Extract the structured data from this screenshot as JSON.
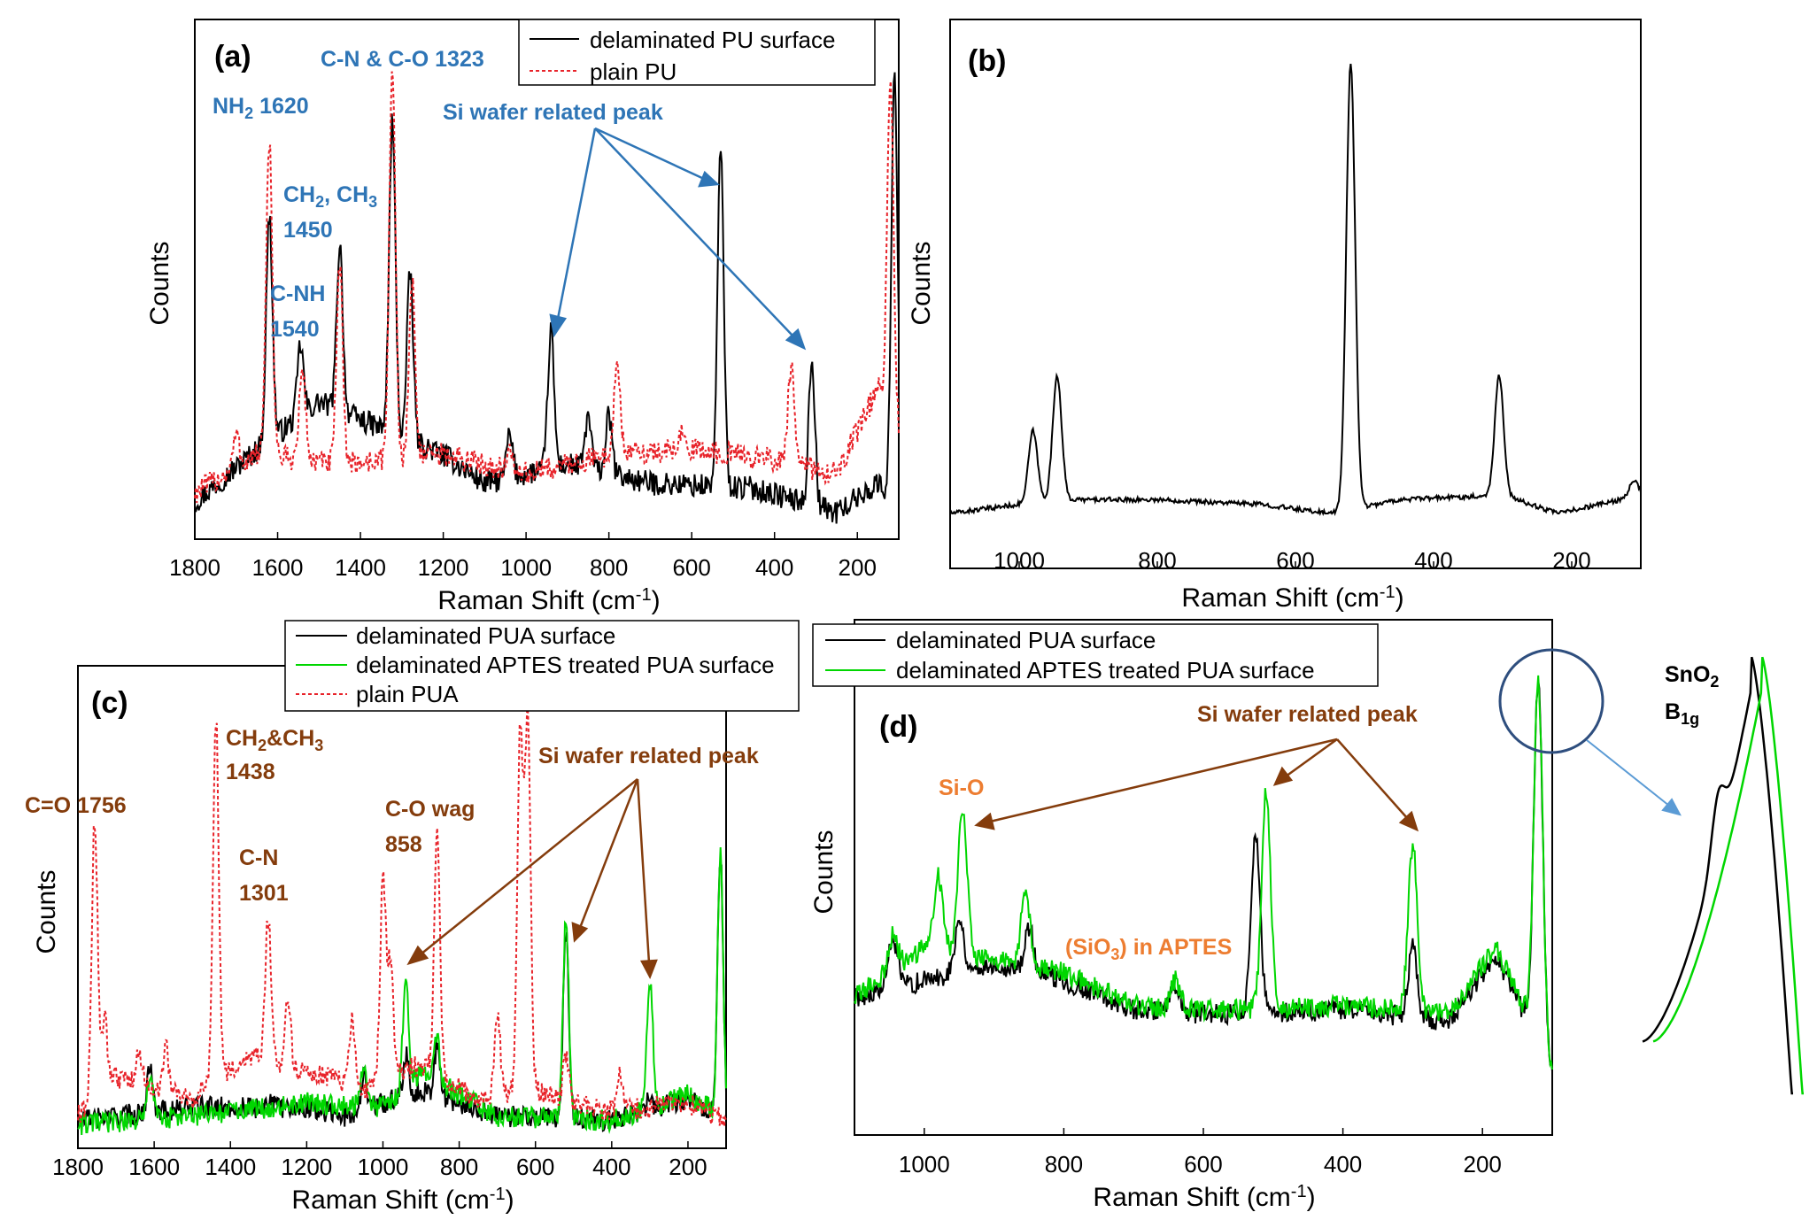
{
  "chart_data": [
    {
      "panel": "(a)",
      "type": "line",
      "xlabel": "Raman Shift (cm",
      "xlabel_sup": "-1",
      "xlabel_end": ")",
      "ylabel": "Counts",
      "x_reversed": true,
      "xlim": [
        1800,
        100
      ],
      "xticks": [
        "1800",
        "1600",
        "1400",
        "1200",
        "1000",
        "800",
        "600",
        "400",
        "200"
      ],
      "xtick_values": [
        1800,
        1600,
        1400,
        1200,
        1000,
        800,
        600,
        400,
        200
      ],
      "series": [
        {
          "name": "delaminated PU surface",
          "color": "#000000",
          "dashed": false,
          "peaks": [
            [
              1620,
              0.66
            ],
            [
              1545,
              0.39
            ],
            [
              1450,
              0.6
            ],
            [
              1323,
              0.86
            ],
            [
              1280,
              0.54
            ],
            [
              1040,
              0.2
            ],
            [
              940,
              0.42
            ],
            [
              850,
              0.24
            ],
            [
              800,
              0.24
            ],
            [
              530,
              0.8
            ],
            [
              310,
              0.36
            ],
            [
              110,
              0.96
            ]
          ],
          "baseline": [
            [
              1800,
              0.06
            ],
            [
              1650,
              0.17
            ],
            [
              1500,
              0.27
            ],
            [
              1200,
              0.16
            ],
            [
              1100,
              0.1
            ],
            [
              900,
              0.14
            ],
            [
              700,
              0.1
            ],
            [
              450,
              0.09
            ],
            [
              250,
              0.04
            ],
            [
              150,
              0.1
            ],
            [
              100,
              0.05
            ]
          ]
        },
        {
          "name": "plain PU",
          "color": "#E8232A",
          "dashed": true,
          "peaks": [
            [
              1700,
              0.2
            ],
            [
              1620,
              0.82
            ],
            [
              1540,
              0.34
            ],
            [
              1450,
              0.55
            ],
            [
              1323,
              0.97
            ],
            [
              1275,
              0.52
            ],
            [
              1040,
              0.16
            ],
            [
              780,
              0.35
            ],
            [
              620,
              0.22
            ],
            [
              360,
              0.34
            ],
            [
              120,
              0.95
            ]
          ],
          "baseline": [
            [
              1800,
              0.08
            ],
            [
              1650,
              0.16
            ],
            [
              1450,
              0.14
            ],
            [
              1200,
              0.16
            ],
            [
              1000,
              0.12
            ],
            [
              800,
              0.16
            ],
            [
              600,
              0.17
            ],
            [
              400,
              0.15
            ],
            [
              250,
              0.12
            ],
            [
              150,
              0.3
            ],
            [
              100,
              0.2
            ]
          ]
        }
      ],
      "annotations": [
        {
          "text": "C-N & C-O 1323"
        },
        {
          "text": "NH",
          "sub": "2",
          "text_after": " 1620"
        },
        {
          "text": "CH",
          "sub": "2",
          "text_after": ", CH",
          "sub2": "3"
        },
        {
          "text": "1450"
        },
        {
          "text": "C-NH"
        },
        {
          "text": "1540"
        },
        {
          "text": "Si wafer related peak"
        }
      ]
    },
    {
      "panel": "(b)",
      "type": "line",
      "xlabel": "Raman Shift (cm",
      "xlabel_sup": "-1",
      "xlabel_end": ")",
      "ylabel": "Counts",
      "x_reversed": true,
      "xlim": [
        1100,
        100
      ],
      "xticks": [
        "1000",
        "800",
        "600",
        "400",
        "200"
      ],
      "xtick_values": [
        1000,
        800,
        600,
        400,
        200
      ],
      "series": [
        {
          "name": "",
          "color": "#000000",
          "dashed": false,
          "peaks": [
            [
              980,
              0.18
            ],
            [
              945,
              0.3
            ],
            [
              520,
              0.98
            ],
            [
              305,
              0.3
            ],
            [
              110,
              0.07
            ]
          ],
          "baseline": [
            [
              1100,
              0.0
            ],
            [
              950,
              0.03
            ],
            [
              800,
              0.03
            ],
            [
              650,
              0.02
            ],
            [
              550,
              0.0
            ],
            [
              450,
              0.03
            ],
            [
              300,
              0.04
            ],
            [
              220,
              0.0
            ],
            [
              100,
              0.04
            ]
          ]
        }
      ]
    },
    {
      "panel": "(c)",
      "type": "line",
      "xlabel": "Raman Shift (cm",
      "xlabel_sup": "-1",
      "xlabel_end": ")",
      "ylabel": "Counts",
      "x_reversed": true,
      "xlim": [
        1800,
        100
      ],
      "xticks": [
        "1800",
        "1600",
        "1400",
        "1200",
        "1000",
        "800",
        "600",
        "400",
        "200"
      ],
      "xtick_values": [
        1800,
        1600,
        1400,
        1200,
        1000,
        800,
        600,
        400,
        200
      ],
      "series": [
        {
          "name": "delaminated PUA surface",
          "color": "#000000",
          "dashed": false,
          "peaks": [
            [
              1610,
              0.18
            ],
            [
              1300,
              0.1
            ],
            [
              1050,
              0.16
            ],
            [
              940,
              0.2
            ],
            [
              858,
              0.22
            ],
            [
              520,
              0.48
            ],
            [
              300,
              0.1
            ],
            [
              115,
              0.66
            ]
          ],
          "baseline": [
            [
              1800,
              0.05
            ],
            [
              1500,
              0.08
            ],
            [
              1200,
              0.08
            ],
            [
              1100,
              0.06
            ],
            [
              900,
              0.12
            ],
            [
              700,
              0.06
            ],
            [
              400,
              0.05
            ],
            [
              200,
              0.1
            ],
            [
              100,
              0.05
            ]
          ]
        },
        {
          "name": "delaminated APTES treated PUA surface",
          "color": "#00D600",
          "dashed": false,
          "peaks": [
            [
              1610,
              0.16
            ],
            [
              1050,
              0.18
            ],
            [
              940,
              0.38
            ],
            [
              858,
              0.24
            ],
            [
              520,
              0.52
            ],
            [
              300,
              0.38
            ],
            [
              115,
              0.66
            ]
          ],
          "baseline": [
            [
              1800,
              0.04
            ],
            [
              1500,
              0.06
            ],
            [
              1200,
              0.09
            ],
            [
              1000,
              0.08
            ],
            [
              900,
              0.16
            ],
            [
              700,
              0.06
            ],
            [
              400,
              0.05
            ],
            [
              200,
              0.11
            ],
            [
              100,
              0.05
            ]
          ]
        },
        {
          "name": "plain PUA",
          "color": "#E8232A",
          "dashed": true,
          "peaks": [
            [
              1756,
              0.75
            ],
            [
              1730,
              0.28
            ],
            [
              1640,
              0.22
            ],
            [
              1570,
              0.22
            ],
            [
              1438,
              0.98
            ],
            [
              1301,
              0.52
            ],
            [
              1250,
              0.34
            ],
            [
              1080,
              0.28
            ],
            [
              1000,
              0.6
            ],
            [
              980,
              0.42
            ],
            [
              858,
              0.7
            ],
            [
              700,
              0.3
            ],
            [
              640,
              0.95
            ],
            [
              620,
              0.98
            ],
            [
              520,
              0.2
            ],
            [
              380,
              0.15
            ]
          ],
          "baseline": [
            [
              1800,
              0.06
            ],
            [
              1700,
              0.15
            ],
            [
              1500,
              0.1
            ],
            [
              1350,
              0.2
            ],
            [
              1150,
              0.15
            ],
            [
              1050,
              0.12
            ],
            [
              900,
              0.18
            ],
            [
              750,
              0.1
            ],
            [
              600,
              0.12
            ],
            [
              400,
              0.07
            ],
            [
              200,
              0.09
            ],
            [
              100,
              0.05
            ]
          ]
        }
      ],
      "annotations": [
        {
          "text": "C=O 1756"
        },
        {
          "text": "CH",
          "sub": "2",
          "text_after": "&CH",
          "sub2": "3"
        },
        {
          "text": "1438"
        },
        {
          "text": "C-N"
        },
        {
          "text": "1301"
        },
        {
          "text": "C-O wag"
        },
        {
          "text": "858"
        },
        {
          "text": "Si wafer related peak"
        }
      ]
    },
    {
      "panel": "(d)",
      "type": "line",
      "xlabel": "Raman Shift (cm",
      "xlabel_sup": "-1",
      "xlabel_end": ")",
      "ylabel": "Counts",
      "x_reversed": true,
      "xlim": [
        1100,
        100
      ],
      "xticks": [
        "1000",
        "800",
        "600",
        "400",
        "200"
      ],
      "xtick_values": [
        1000,
        800,
        600,
        400,
        200
      ],
      "series": [
        {
          "name": "delaminated PUA surface",
          "color": "#000000",
          "dashed": false,
          "peaks": [
            [
              1045,
              0.32
            ],
            [
              950,
              0.37
            ],
            [
              850,
              0.35
            ],
            [
              640,
              0.2
            ],
            [
              525,
              0.58
            ],
            [
              300,
              0.3
            ],
            [
              120,
              0.95
            ]
          ],
          "baseline": [
            [
              1100,
              0.18
            ],
            [
              1000,
              0.22
            ],
            [
              900,
              0.26
            ],
            [
              800,
              0.22
            ],
            [
              700,
              0.15
            ],
            [
              600,
              0.14
            ],
            [
              500,
              0.14
            ],
            [
              400,
              0.15
            ],
            [
              250,
              0.12
            ],
            [
              180,
              0.28
            ],
            [
              100,
              0.0
            ]
          ]
        },
        {
          "name": "delaminated APTES treated PUA surface",
          "color": "#00D600",
          "dashed": false,
          "peaks": [
            [
              1045,
              0.33
            ],
            [
              980,
              0.48
            ],
            [
              945,
              0.65
            ],
            [
              855,
              0.43
            ],
            [
              640,
              0.22
            ],
            [
              510,
              0.68
            ],
            [
              300,
              0.55
            ],
            [
              120,
              0.95
            ]
          ],
          "baseline": [
            [
              1100,
              0.18
            ],
            [
              1000,
              0.3
            ],
            [
              900,
              0.27
            ],
            [
              800,
              0.24
            ],
            [
              700,
              0.16
            ],
            [
              600,
              0.15
            ],
            [
              500,
              0.15
            ],
            [
              400,
              0.16
            ],
            [
              250,
              0.14
            ],
            [
              180,
              0.3
            ],
            [
              100,
              0.0
            ]
          ]
        }
      ],
      "annotations": [
        {
          "text": "Si-O"
        },
        {
          "text": "Si wafer related peak"
        },
        {
          "text": "(SiO",
          "sub": "3",
          "text_after": ") in APTES"
        }
      ],
      "inset": {
        "label": "SnO",
        "label_sub": "2",
        "label2": "B",
        "label2_sub": "1g"
      }
    }
  ],
  "colors": {
    "black": "#000000",
    "red": "#E8232A",
    "green": "#00D600",
    "blue_annotation": "#2E75B6",
    "brown_annotation": "#843C0C",
    "orange_annotation": "#ED7D31",
    "circle": "#2E4E7E"
  }
}
